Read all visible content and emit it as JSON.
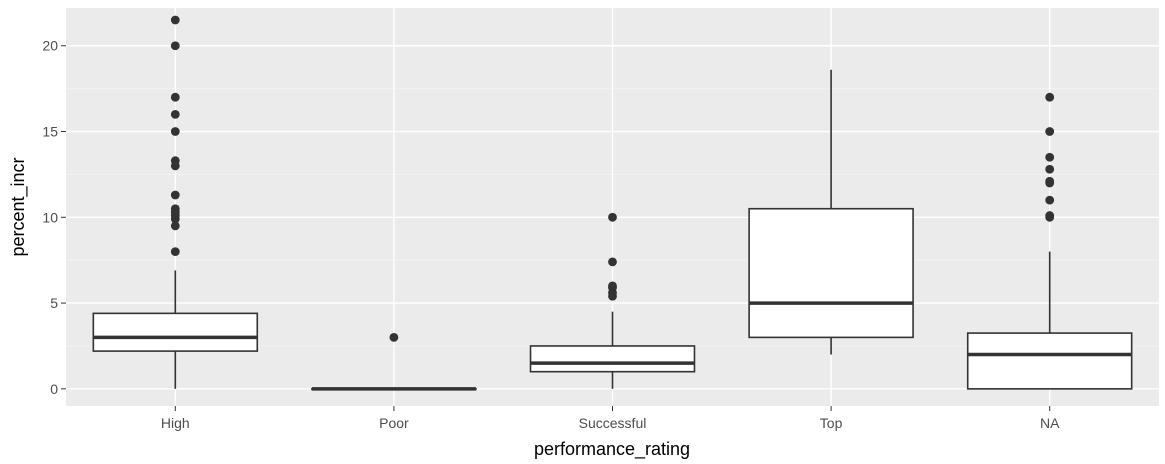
{
  "chart_data": {
    "type": "boxplot",
    "xlabel": "performance_rating",
    "ylabel": "percent_incr",
    "categories": [
      "High",
      "Poor",
      "Successful",
      "Top",
      "NA"
    ],
    "ylim": [
      -1,
      22.2
    ],
    "yticks": [
      0,
      5,
      10,
      15,
      20
    ],
    "grid": true,
    "legend": "none",
    "boxes": [
      {
        "category": "High",
        "lower_whisker": 0,
        "q1": 2.2,
        "median": 3.0,
        "q3": 4.4,
        "upper_whisker": 6.9,
        "outliers": [
          8.0,
          9.5,
          9.9,
          10.1,
          10.3,
          10.5,
          11.3,
          13.0,
          13.3,
          15.0,
          16.0,
          17.0,
          20.0,
          21.5
        ]
      },
      {
        "category": "Poor",
        "lower_whisker": 0,
        "q1": 0,
        "median": 0,
        "q3": 0,
        "upper_whisker": 0,
        "outliers": [
          3.0
        ]
      },
      {
        "category": "Successful",
        "lower_whisker": 0,
        "q1": 1.0,
        "median": 1.5,
        "q3": 2.5,
        "upper_whisker": 4.5,
        "outliers": [
          5.4,
          5.6,
          5.9,
          6.0,
          7.4,
          10.0
        ]
      },
      {
        "category": "Top",
        "lower_whisker": 2.0,
        "q1": 3.0,
        "median": 5.0,
        "q3": 10.5,
        "upper_whisker": 18.6,
        "outliers": []
      },
      {
        "category": "NA",
        "lower_whisker": 0,
        "q1": 0,
        "median": 2.0,
        "q3": 3.25,
        "upper_whisker": 8.0,
        "outliers": [
          10.0,
          10.1,
          11.0,
          12.0,
          12.1,
          12.8,
          13.5,
          15.0,
          17.0
        ]
      }
    ],
    "colors": {
      "panel_background": "#ebebeb",
      "grid_major": "#ffffff",
      "grid_minor": "#f2f2f2",
      "box_fill": "#ffffff",
      "box_line": "#333333",
      "outlier": "#333333",
      "tick_label": "#4d4d4d",
      "axis_title": "#000000"
    }
  }
}
